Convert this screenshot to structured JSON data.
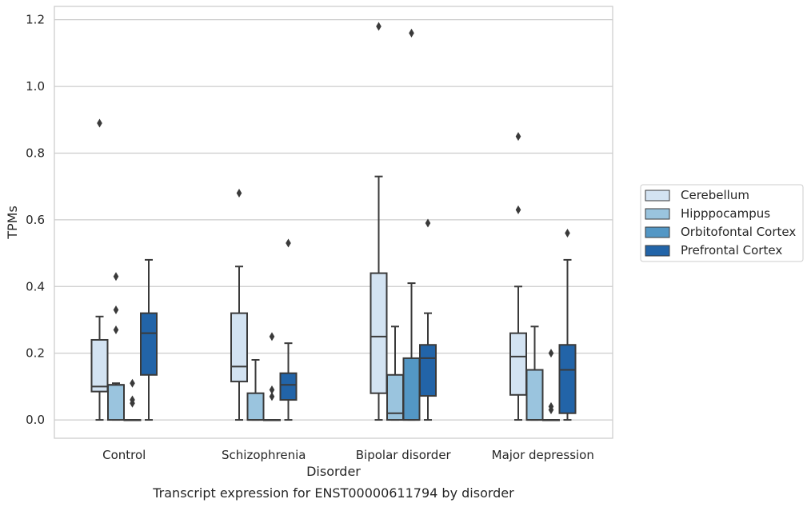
{
  "chart_data": {
    "type": "boxplot",
    "title": "",
    "caption": "Transcript expression for ENST00000611794 by disorder",
    "xlabel": "Disorder",
    "ylabel": "TPMs",
    "ylim": [
      -0.055,
      1.24
    ],
    "yticks": [
      "0.0",
      "0.2",
      "0.4",
      "0.6",
      "0.8",
      "1.0",
      "1.2"
    ],
    "grid": true,
    "legend_position": "right",
    "categories": [
      "Control",
      "Schizophrenia",
      "Bipolar disorder",
      "Major depression"
    ],
    "series": [
      {
        "name": "Cerebellum",
        "color": "#d3e3f2",
        "boxes": [
          {
            "whisker_low": 0.0,
            "q1": 0.085,
            "median": 0.1,
            "q3": 0.24,
            "whisker_high": 0.31,
            "outliers": [
              0.89
            ]
          },
          {
            "whisker_low": 0.0,
            "q1": 0.115,
            "median": 0.16,
            "q3": 0.32,
            "whisker_high": 0.46,
            "outliers": [
              0.68
            ]
          },
          {
            "whisker_low": 0.0,
            "q1": 0.08,
            "median": 0.25,
            "q3": 0.44,
            "whisker_high": 0.73,
            "outliers": [
              1.18
            ]
          },
          {
            "whisker_low": 0.0,
            "q1": 0.075,
            "median": 0.19,
            "q3": 0.26,
            "whisker_high": 0.4,
            "outliers": [
              0.85,
              0.63
            ]
          }
        ]
      },
      {
        "name": "Hipppocampus",
        "color": "#9ac4de",
        "boxes": [
          {
            "whisker_low": 0.0,
            "q1": 0.0,
            "median": 0.105,
            "q3": 0.105,
            "whisker_high": 0.11,
            "outliers": [
              0.43,
              0.33,
              0.27
            ]
          },
          {
            "whisker_low": 0.0,
            "q1": 0.0,
            "median": 0.0,
            "q3": 0.08,
            "whisker_high": 0.18,
            "outliers": []
          },
          {
            "whisker_low": 0.0,
            "q1": 0.0,
            "median": 0.02,
            "q3": 0.135,
            "whisker_high": 0.28,
            "outliers": []
          },
          {
            "whisker_low": 0.0,
            "q1": 0.0,
            "median": 0.0,
            "q3": 0.15,
            "whisker_high": 0.28,
            "outliers": []
          }
        ]
      },
      {
        "name": "Orbitofontal Cortex",
        "color": "#5397c5",
        "boxes": [
          {
            "whisker_low": 0.0,
            "q1": 0.0,
            "median": 0.0,
            "q3": 0.0,
            "whisker_high": 0.0,
            "outliers": [
              0.11,
              0.06,
              0.05
            ]
          },
          {
            "whisker_low": 0.0,
            "q1": 0.0,
            "median": 0.0,
            "q3": 0.0,
            "whisker_high": 0.0,
            "outliers": [
              0.25,
              0.09,
              0.07
            ]
          },
          {
            "whisker_low": 0.0,
            "q1": 0.0,
            "median": 0.0,
            "q3": 0.185,
            "whisker_high": 0.41,
            "outliers": [
              1.16
            ]
          },
          {
            "whisker_low": 0.0,
            "q1": 0.0,
            "median": 0.0,
            "q3": 0.0,
            "whisker_high": 0.0,
            "outliers": [
              0.2,
              0.04,
              0.03
            ]
          }
        ]
      },
      {
        "name": "Prefrontal Cortex",
        "color": "#2264a8",
        "boxes": [
          {
            "whisker_low": 0.0,
            "q1": 0.135,
            "median": 0.26,
            "q3": 0.32,
            "whisker_high": 0.48,
            "outliers": []
          },
          {
            "whisker_low": 0.0,
            "q1": 0.06,
            "median": 0.105,
            "q3": 0.14,
            "whisker_high": 0.23,
            "outliers": [
              0.53
            ]
          },
          {
            "whisker_low": 0.0,
            "q1": 0.072,
            "median": 0.185,
            "q3": 0.225,
            "whisker_high": 0.32,
            "outliers": [
              0.59
            ]
          },
          {
            "whisker_low": 0.0,
            "q1": 0.02,
            "median": 0.15,
            "q3": 0.225,
            "whisker_high": 0.48,
            "outliers": [
              0.56
            ]
          }
        ]
      }
    ]
  }
}
